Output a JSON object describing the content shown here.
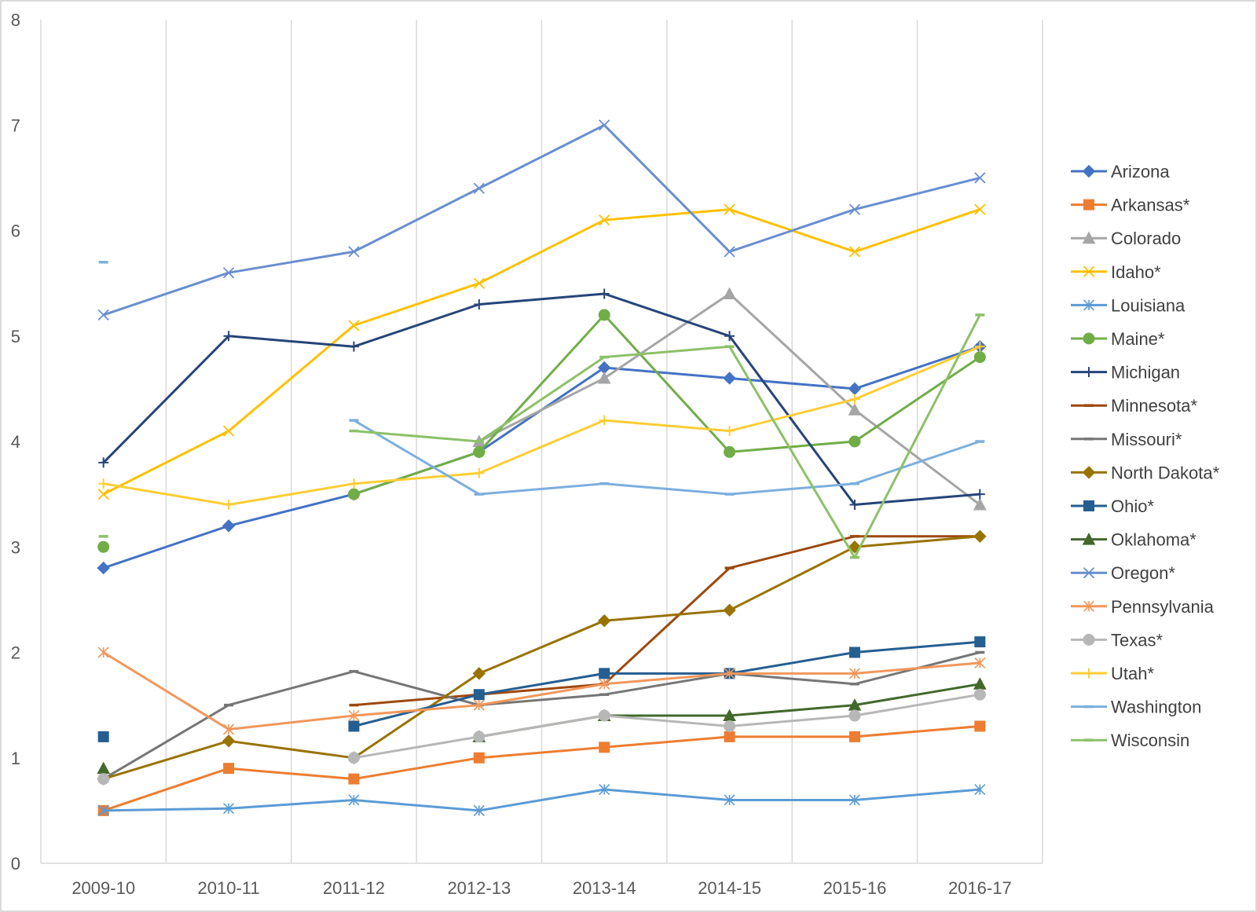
{
  "chart_data": {
    "type": "line",
    "title": "",
    "xlabel": "",
    "ylabel": "",
    "categories": [
      "2009-10",
      "2010-11",
      "2011-12",
      "2012-13",
      "2013-14",
      "2014-15",
      "2015-16",
      "2016-17"
    ],
    "ylim": [
      0,
      8
    ],
    "yticks": [
      "0",
      "1",
      "2",
      "3",
      "4",
      "5",
      "6",
      "7",
      "8"
    ],
    "grid": "vertical",
    "legend_position": "right",
    "series": [
      {
        "name": "Arizona",
        "color": "#4472C4",
        "marker": "diamond",
        "values": [
          2.8,
          3.2,
          3.5,
          3.9,
          4.7,
          4.6,
          4.5,
          4.9
        ]
      },
      {
        "name": "Arkansas*",
        "color": "#ED7D31",
        "marker": "square",
        "values": [
          0.5,
          0.9,
          0.8,
          1.0,
          1.1,
          1.2,
          1.2,
          1.3
        ]
      },
      {
        "name": "Colorado",
        "color": "#A5A5A5",
        "marker": "triangle",
        "values": [
          null,
          null,
          null,
          4.0,
          4.6,
          5.4,
          4.3,
          3.4
        ]
      },
      {
        "name": "Idaho*",
        "color": "#FFC000",
        "marker": "x",
        "values": [
          3.5,
          4.1,
          5.1,
          5.5,
          6.1,
          6.2,
          5.8,
          6.2
        ]
      },
      {
        "name": "Louisiana",
        "color": "#5B9BD5",
        "marker": "asterisk",
        "values": [
          0.5,
          0.52,
          0.6,
          0.5,
          0.7,
          0.6,
          0.6,
          0.7
        ]
      },
      {
        "name": "Maine*",
        "color": "#70AD47",
        "marker": "circle",
        "values": [
          3.0,
          null,
          3.5,
          3.9,
          5.2,
          3.9,
          4.0,
          4.8
        ]
      },
      {
        "name": "Michigan",
        "color": "#264478",
        "marker": "plus",
        "values": [
          3.8,
          5.0,
          4.9,
          5.3,
          5.4,
          5.0,
          3.4,
          3.5
        ]
      },
      {
        "name": "Minnesota*",
        "color": "#9E480E",
        "marker": "dash",
        "values": [
          null,
          null,
          1.5,
          1.6,
          1.7,
          2.8,
          3.1,
          3.1
        ]
      },
      {
        "name": "Missouri*",
        "color": "#767676",
        "marker": "dash",
        "values": [
          0.8,
          1.5,
          1.82,
          1.5,
          1.6,
          1.8,
          1.7,
          2.0
        ]
      },
      {
        "name": "North Dakota*",
        "color": "#997300",
        "marker": "diamond",
        "values": [
          0.8,
          1.16,
          1.0,
          1.8,
          2.3,
          2.4,
          3.0,
          3.1
        ]
      },
      {
        "name": "Ohio*",
        "color": "#255E91",
        "marker": "square",
        "values": [
          1.2,
          null,
          1.3,
          1.6,
          1.8,
          1.8,
          2.0,
          2.1
        ]
      },
      {
        "name": "Oklahoma*",
        "color": "#43682B",
        "marker": "triangle",
        "values": [
          0.9,
          null,
          null,
          1.2,
          1.4,
          1.4,
          1.5,
          1.7
        ]
      },
      {
        "name": "Oregon*",
        "color": "#698ED0",
        "marker": "x",
        "values": [
          5.2,
          5.6,
          5.8,
          6.4,
          7.0,
          5.8,
          6.2,
          6.5
        ]
      },
      {
        "name": "Pennsylvania",
        "color": "#F1975A",
        "marker": "asterisk",
        "values": [
          2.0,
          1.27,
          1.4,
          1.5,
          1.7,
          1.8,
          1.8,
          1.9
        ]
      },
      {
        "name": "Texas*",
        "color": "#B7B7B7",
        "marker": "circle",
        "values": [
          0.8,
          null,
          1.0,
          1.2,
          1.4,
          1.3,
          1.4,
          1.6
        ]
      },
      {
        "name": "Utah*",
        "color": "#FFCD33",
        "marker": "plus",
        "values": [
          3.6,
          3.4,
          3.6,
          3.7,
          4.2,
          4.1,
          4.4,
          4.9
        ]
      },
      {
        "name": "Washington",
        "color": "#7CAFDD",
        "marker": "dash",
        "values": [
          5.7,
          null,
          4.2,
          3.5,
          3.6,
          3.5,
          3.6,
          4.0
        ]
      },
      {
        "name": "Wisconsin",
        "color": "#8CC168",
        "marker": "dash",
        "values": [
          3.1,
          null,
          4.1,
          4.0,
          4.8,
          4.9,
          2.9,
          5.2
        ]
      }
    ]
  }
}
